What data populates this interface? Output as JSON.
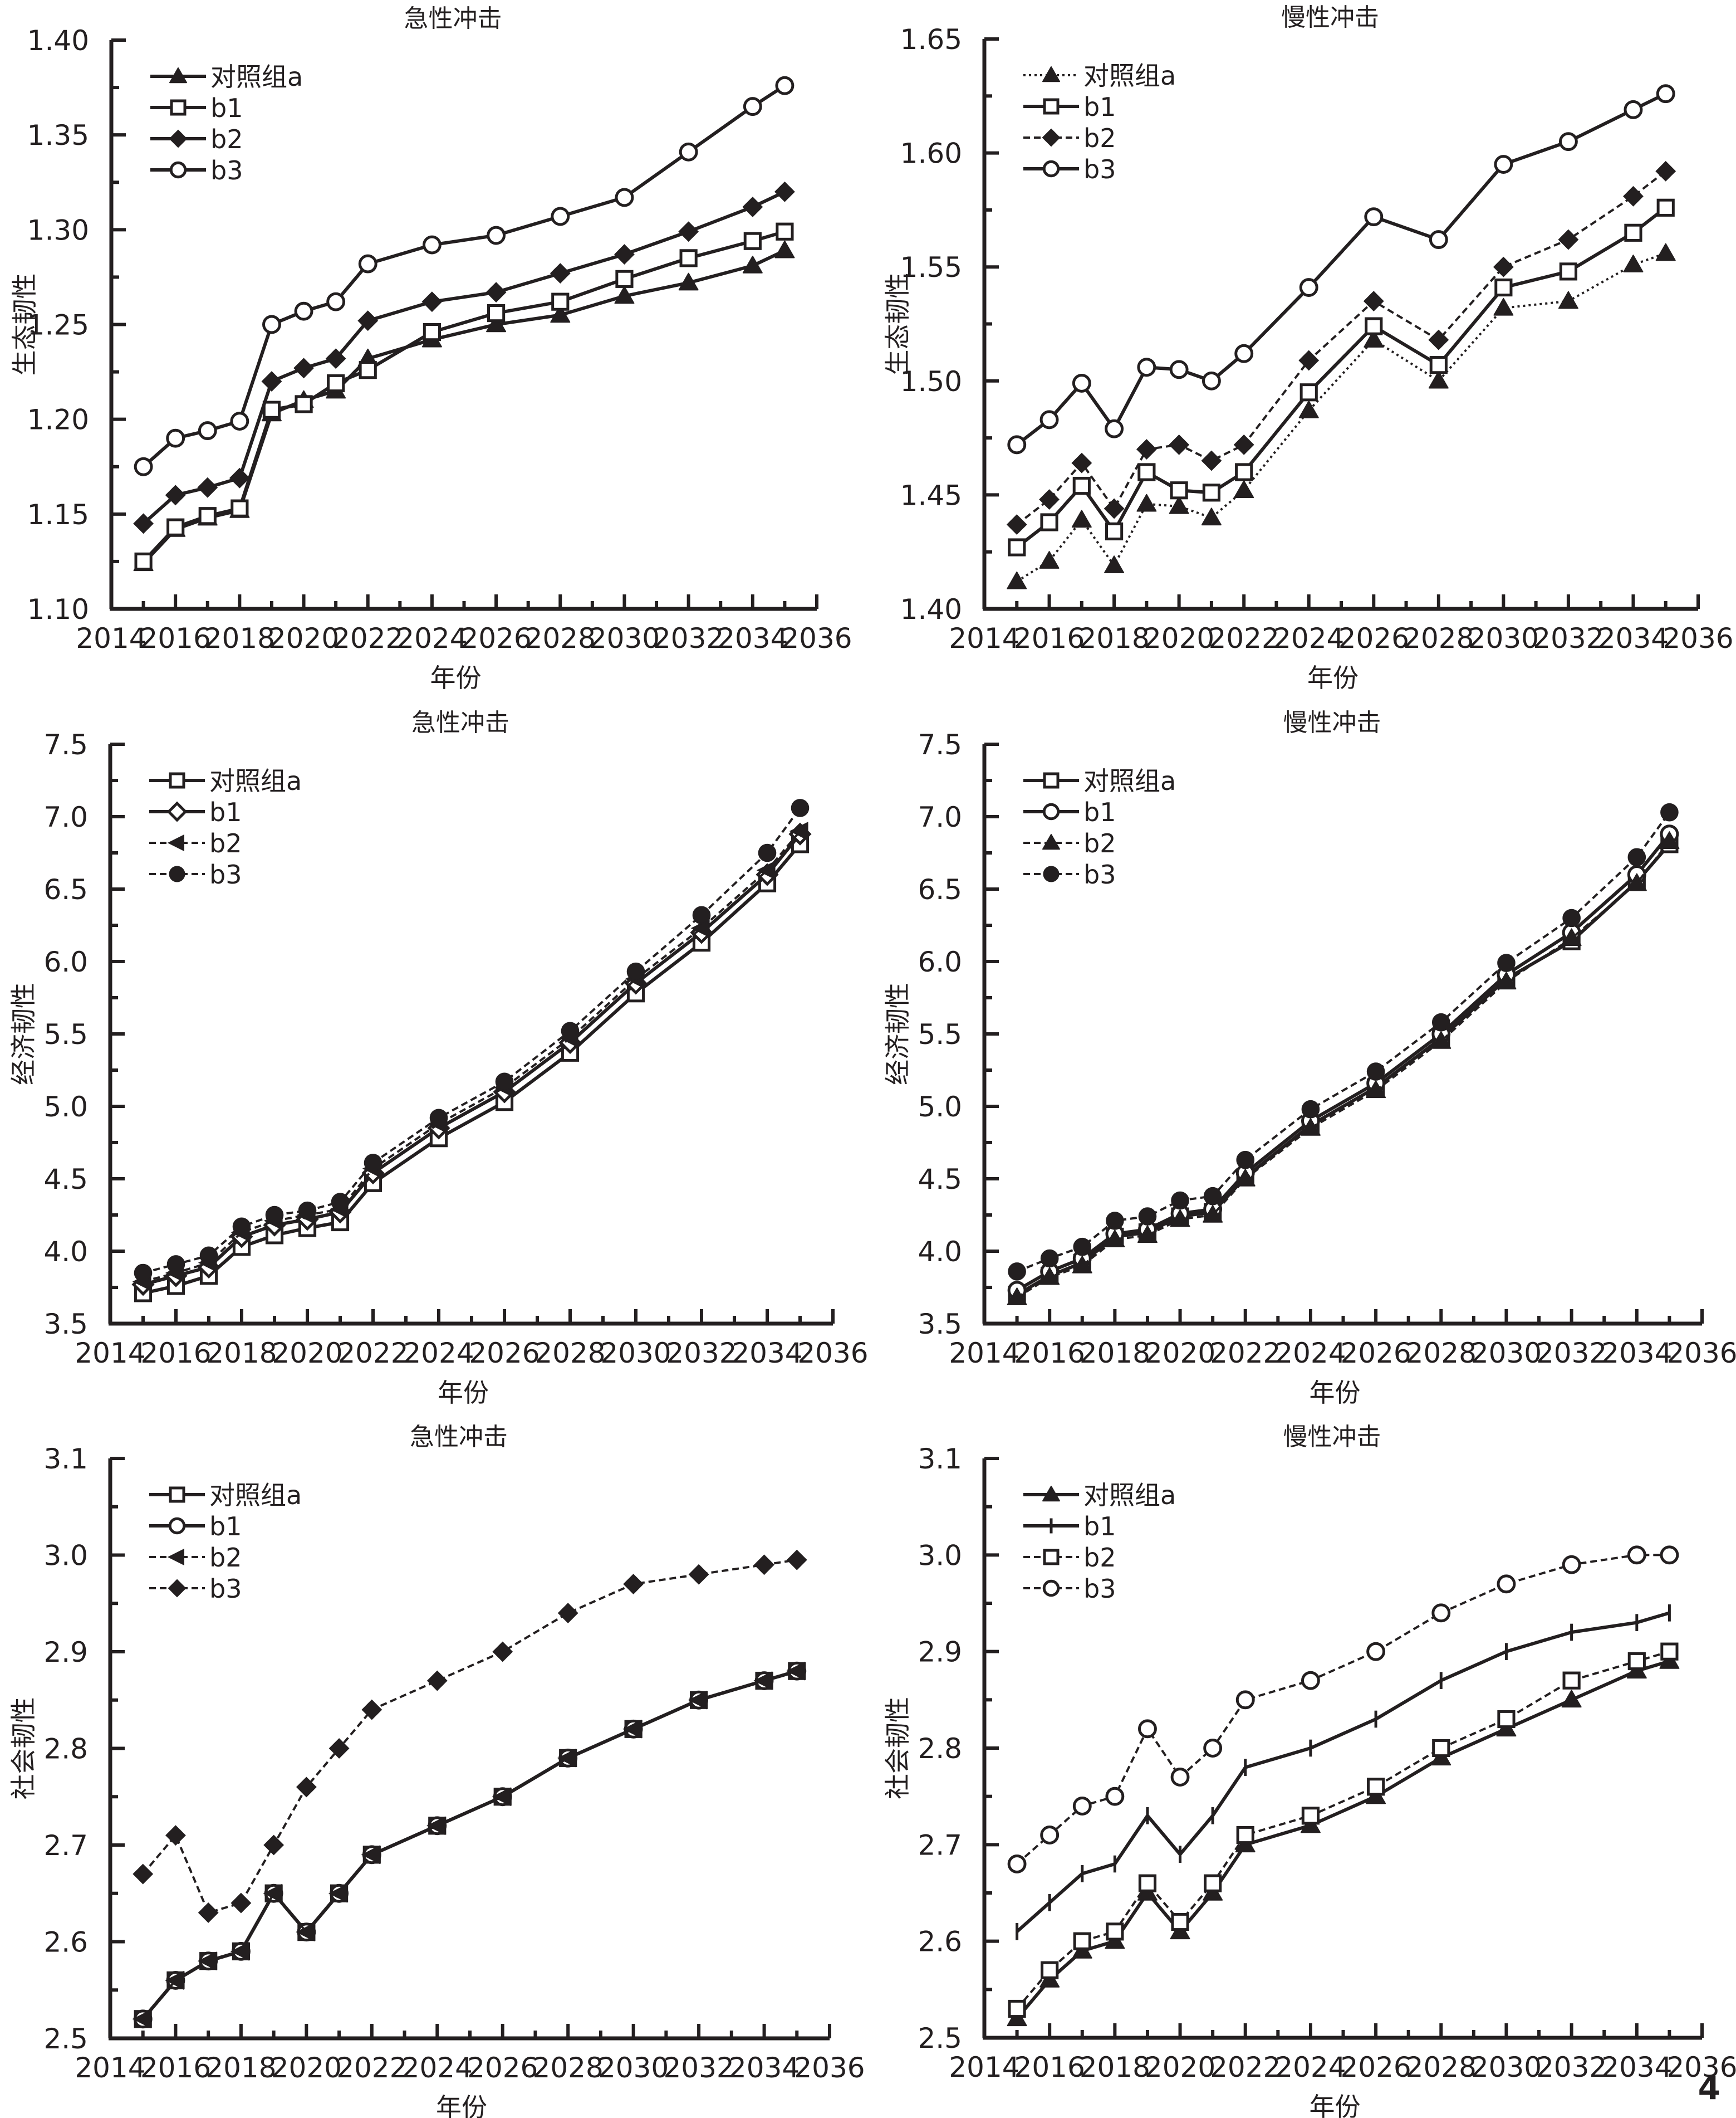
{
  "page_number": "4",
  "chart_data": [
    {
      "id": "eco-acute",
      "type": "line",
      "title": "急性冲击",
      "xlabel": "年份",
      "ylabel": "生态韧性",
      "xlim": [
        2014,
        2036
      ],
      "ylim": [
        1.1,
        1.4
      ],
      "xticks": [
        2014,
        2016,
        2018,
        2020,
        2022,
        2024,
        2026,
        2028,
        2030,
        2032,
        2034,
        2036
      ],
      "yticks": [
        1.1,
        1.15,
        1.2,
        1.25,
        1.3,
        1.35,
        1.4
      ],
      "ytick_decimals": 2,
      "legend_position": "top-left",
      "grid": false,
      "x": [
        2015,
        2016,
        2017,
        2018,
        2019,
        2020,
        2021,
        2022,
        2024,
        2026,
        2028,
        2030,
        2032,
        2034,
        2035
      ],
      "series": [
        {
          "name": "对照组a",
          "marker": "triangle-filled",
          "line": "solid",
          "values": [
            1.124,
            1.142,
            1.148,
            1.152,
            1.203,
            1.21,
            1.215,
            1.232,
            1.242,
            1.25,
            1.255,
            1.265,
            1.272,
            1.281,
            1.289
          ]
        },
        {
          "name": "b1",
          "marker": "square-open",
          "line": "solid",
          "values": [
            1.125,
            1.143,
            1.149,
            1.153,
            1.205,
            1.208,
            1.219,
            1.226,
            1.246,
            1.256,
            1.262,
            1.274,
            1.285,
            1.294,
            1.299
          ]
        },
        {
          "name": "b2",
          "marker": "diamond-filled",
          "line": "solid",
          "values": [
            1.145,
            1.16,
            1.164,
            1.169,
            1.22,
            1.227,
            1.232,
            1.252,
            1.262,
            1.267,
            1.277,
            1.287,
            1.299,
            1.312,
            1.32
          ]
        },
        {
          "name": "b3",
          "marker": "circle-open",
          "line": "solid",
          "values": [
            1.175,
            1.19,
            1.194,
            1.199,
            1.25,
            1.257,
            1.262,
            1.282,
            1.292,
            1.297,
            1.307,
            1.317,
            1.341,
            1.365,
            1.376
          ]
        }
      ]
    },
    {
      "id": "eco-chronic",
      "type": "line",
      "title": "慢性冲击",
      "xlabel": "年份",
      "ylabel": "生态韧性",
      "xlim": [
        2014,
        2036
      ],
      "ylim": [
        1.4,
        1.65
      ],
      "xticks": [
        2014,
        2016,
        2018,
        2020,
        2022,
        2024,
        2026,
        2028,
        2030,
        2032,
        2034,
        2036
      ],
      "yticks": [
        1.4,
        1.45,
        1.5,
        1.55,
        1.6,
        1.65
      ],
      "ytick_decimals": 2,
      "legend_position": "top-left",
      "grid": false,
      "x": [
        2015,
        2016,
        2017,
        2018,
        2019,
        2020,
        2021,
        2022,
        2024,
        2026,
        2028,
        2030,
        2032,
        2034,
        2035
      ],
      "series": [
        {
          "name": "对照组a",
          "marker": "triangle-filled",
          "line": "dotted",
          "values": [
            1.412,
            1.421,
            1.439,
            1.419,
            1.446,
            1.445,
            1.44,
            1.452,
            1.487,
            1.518,
            1.5,
            1.532,
            1.535,
            1.551,
            1.556
          ]
        },
        {
          "name": "b1",
          "marker": "square-open",
          "line": "solid",
          "values": [
            1.427,
            1.438,
            1.454,
            1.434,
            1.46,
            1.452,
            1.451,
            1.46,
            1.495,
            1.524,
            1.507,
            1.541,
            1.548,
            1.565,
            1.576
          ]
        },
        {
          "name": "b2",
          "marker": "diamond-filled",
          "line": "dashed",
          "values": [
            1.437,
            1.448,
            1.464,
            1.444,
            1.47,
            1.472,
            1.465,
            1.472,
            1.509,
            1.535,
            1.518,
            1.55,
            1.562,
            1.581,
            1.592
          ]
        },
        {
          "name": "b3",
          "marker": "circle-open",
          "line": "solid",
          "values": [
            1.472,
            1.483,
            1.499,
            1.479,
            1.506,
            1.505,
            1.5,
            1.512,
            1.541,
            1.572,
            1.562,
            1.595,
            1.605,
            1.619,
            1.626
          ]
        }
      ]
    },
    {
      "id": "econ-acute",
      "type": "line",
      "title": "急性冲击",
      "xlabel": "年份",
      "ylabel": "经济韧性",
      "xlim": [
        2014,
        2036
      ],
      "ylim": [
        3.5,
        7.5
      ],
      "xticks": [
        2014,
        2016,
        2018,
        2020,
        2022,
        2024,
        2026,
        2028,
        2030,
        2032,
        2034,
        2036
      ],
      "yticks": [
        3.5,
        4.0,
        4.5,
        5.0,
        5.5,
        6.0,
        6.5,
        7.0,
        7.5
      ],
      "ytick_decimals": 1,
      "legend_position": "top-left",
      "grid": false,
      "x": [
        2015,
        2016,
        2017,
        2018,
        2019,
        2020,
        2021,
        2022,
        2024,
        2026,
        2028,
        2030,
        2032,
        2034,
        2035
      ],
      "series": [
        {
          "name": "对照组a",
          "marker": "square-open",
          "line": "solid",
          "values": [
            3.71,
            3.76,
            3.83,
            4.03,
            4.11,
            4.16,
            4.2,
            4.47,
            4.78,
            5.03,
            5.37,
            5.78,
            6.13,
            6.54,
            6.81
          ]
        },
        {
          "name": "b1",
          "marker": "diamond-open",
          "line": "solid",
          "values": [
            3.77,
            3.83,
            3.89,
            4.1,
            4.18,
            4.22,
            4.27,
            4.54,
            4.85,
            5.1,
            5.44,
            5.85,
            6.2,
            6.6,
            6.88
          ]
        },
        {
          "name": "b2",
          "marker": "triangle-left-filled",
          "line": "dashed",
          "values": [
            3.79,
            3.85,
            3.92,
            4.13,
            4.21,
            4.25,
            4.29,
            4.57,
            4.88,
            5.13,
            5.47,
            5.88,
            6.23,
            6.63,
            6.9
          ]
        },
        {
          "name": "b3",
          "marker": "circle-filled",
          "line": "dashed",
          "values": [
            3.85,
            3.91,
            3.97,
            4.17,
            4.25,
            4.28,
            4.34,
            4.61,
            4.92,
            5.17,
            5.52,
            5.93,
            6.32,
            6.75,
            7.06
          ]
        }
      ]
    },
    {
      "id": "econ-chronic",
      "type": "line",
      "title": "慢性冲击",
      "xlabel": "年份",
      "ylabel": "经济韧性",
      "xlim": [
        2014,
        2036
      ],
      "ylim": [
        3.5,
        7.5
      ],
      "xticks": [
        2014,
        2016,
        2018,
        2020,
        2022,
        2024,
        2026,
        2028,
        2030,
        2032,
        2034,
        2036
      ],
      "yticks": [
        3.5,
        4.0,
        4.5,
        5.0,
        5.5,
        6.0,
        6.5,
        7.0,
        7.5
      ],
      "ytick_decimals": 1,
      "legend_position": "top-left",
      "grid": false,
      "x": [
        2015,
        2016,
        2017,
        2018,
        2019,
        2020,
        2021,
        2022,
        2024,
        2026,
        2028,
        2030,
        2032,
        2034,
        2035
      ],
      "series": [
        {
          "name": "对照组a",
          "marker": "square-open",
          "line": "solid",
          "values": [
            3.7,
            3.83,
            3.92,
            4.1,
            4.13,
            4.24,
            4.27,
            4.51,
            4.87,
            5.13,
            5.47,
            5.88,
            6.14,
            6.55,
            6.81
          ]
        },
        {
          "name": "b1",
          "marker": "circle-open",
          "line": "solid",
          "values": [
            3.73,
            3.86,
            3.95,
            4.12,
            4.15,
            4.26,
            4.29,
            4.54,
            4.9,
            5.16,
            5.5,
            5.91,
            6.2,
            6.6,
            6.88
          ]
        },
        {
          "name": "b2",
          "marker": "triangle-filled",
          "line": "dashed",
          "values": [
            3.68,
            3.82,
            3.9,
            4.08,
            4.11,
            4.22,
            4.25,
            4.5,
            4.85,
            5.11,
            5.45,
            5.86,
            6.16,
            6.54,
            6.83
          ]
        },
        {
          "name": "b3",
          "marker": "circle-filled",
          "line": "dashed",
          "values": [
            3.86,
            3.95,
            4.03,
            4.21,
            4.24,
            4.35,
            4.38,
            4.63,
            4.98,
            5.24,
            5.58,
            5.99,
            6.3,
            6.72,
            7.03
          ]
        }
      ]
    },
    {
      "id": "social-acute",
      "type": "line",
      "title": "急性冲击",
      "xlabel": "年份",
      "ylabel": "社会韧性",
      "xlim": [
        2014,
        2036
      ],
      "ylim": [
        2.5,
        3.1
      ],
      "xticks": [
        2014,
        2016,
        2018,
        2020,
        2022,
        2024,
        2026,
        2028,
        2030,
        2032,
        2034,
        2036
      ],
      "yticks": [
        2.5,
        2.6,
        2.7,
        2.8,
        2.9,
        3.0,
        3.1
      ],
      "ytick_decimals": 1,
      "legend_position": "top-left",
      "grid": false,
      "x": [
        2015,
        2016,
        2017,
        2018,
        2019,
        2020,
        2021,
        2022,
        2024,
        2026,
        2028,
        2030,
        2032,
        2034,
        2035
      ],
      "series": [
        {
          "name": "对照组a",
          "marker": "square-open",
          "line": "solid",
          "values": [
            2.52,
            2.56,
            2.58,
            2.59,
            2.65,
            2.61,
            2.65,
            2.69,
            2.72,
            2.75,
            2.79,
            2.82,
            2.85,
            2.87,
            2.88
          ]
        },
        {
          "name": "b1",
          "marker": "circle-open",
          "line": "solid",
          "values": [
            2.52,
            2.56,
            2.58,
            2.59,
            2.65,
            2.61,
            2.65,
            2.69,
            2.72,
            2.75,
            2.79,
            2.82,
            2.85,
            2.87,
            2.88
          ]
        },
        {
          "name": "b2",
          "marker": "triangle-left-filled",
          "line": "dashed",
          "values": [
            2.52,
            2.56,
            2.58,
            2.59,
            2.65,
            2.61,
            2.65,
            2.69,
            2.72,
            2.75,
            2.79,
            2.82,
            2.85,
            2.87,
            2.88
          ]
        },
        {
          "name": "b3",
          "marker": "diamond-filled",
          "line": "dashed",
          "values": [
            2.67,
            2.71,
            2.63,
            2.64,
            2.7,
            2.76,
            2.8,
            2.84,
            2.87,
            2.9,
            2.94,
            2.97,
            2.98,
            2.99,
            2.995
          ]
        }
      ]
    },
    {
      "id": "social-chronic",
      "type": "line",
      "title": "慢性冲击",
      "xlabel": "年份",
      "ylabel": "社会韧性",
      "xlim": [
        2014,
        2036
      ],
      "ylim": [
        2.5,
        3.1
      ],
      "xticks": [
        2014,
        2016,
        2018,
        2020,
        2022,
        2024,
        2026,
        2028,
        2030,
        2032,
        2034,
        2036
      ],
      "yticks": [
        2.5,
        2.6,
        2.7,
        2.8,
        2.9,
        3.0,
        3.1
      ],
      "ytick_decimals": 1,
      "legend_position": "top-left",
      "grid": false,
      "x": [
        2015,
        2016,
        2017,
        2018,
        2019,
        2020,
        2021,
        2022,
        2024,
        2026,
        2028,
        2030,
        2032,
        2034,
        2035
      ],
      "series": [
        {
          "name": "对照组a",
          "marker": "triangle-filled",
          "line": "solid",
          "values": [
            2.52,
            2.56,
            2.59,
            2.6,
            2.65,
            2.61,
            2.65,
            2.7,
            2.72,
            2.75,
            2.79,
            2.82,
            2.85,
            2.88,
            2.89
          ]
        },
        {
          "name": "b1",
          "marker": "plus-tick",
          "line": "solid",
          "values": [
            2.61,
            2.64,
            2.67,
            2.68,
            2.73,
            2.69,
            2.73,
            2.78,
            2.8,
            2.83,
            2.87,
            2.9,
            2.92,
            2.93,
            2.94
          ]
        },
        {
          "name": "b2",
          "marker": "square-open",
          "line": "dashed",
          "values": [
            2.53,
            2.57,
            2.6,
            2.61,
            2.66,
            2.62,
            2.66,
            2.71,
            2.73,
            2.76,
            2.8,
            2.83,
            2.87,
            2.89,
            2.9
          ]
        },
        {
          "name": "b3",
          "marker": "circle-open",
          "line": "dashed",
          "values": [
            2.68,
            2.71,
            2.74,
            2.75,
            2.82,
            2.77,
            2.8,
            2.85,
            2.87,
            2.9,
            2.94,
            2.97,
            2.99,
            3.0,
            3.0
          ]
        }
      ]
    }
  ]
}
